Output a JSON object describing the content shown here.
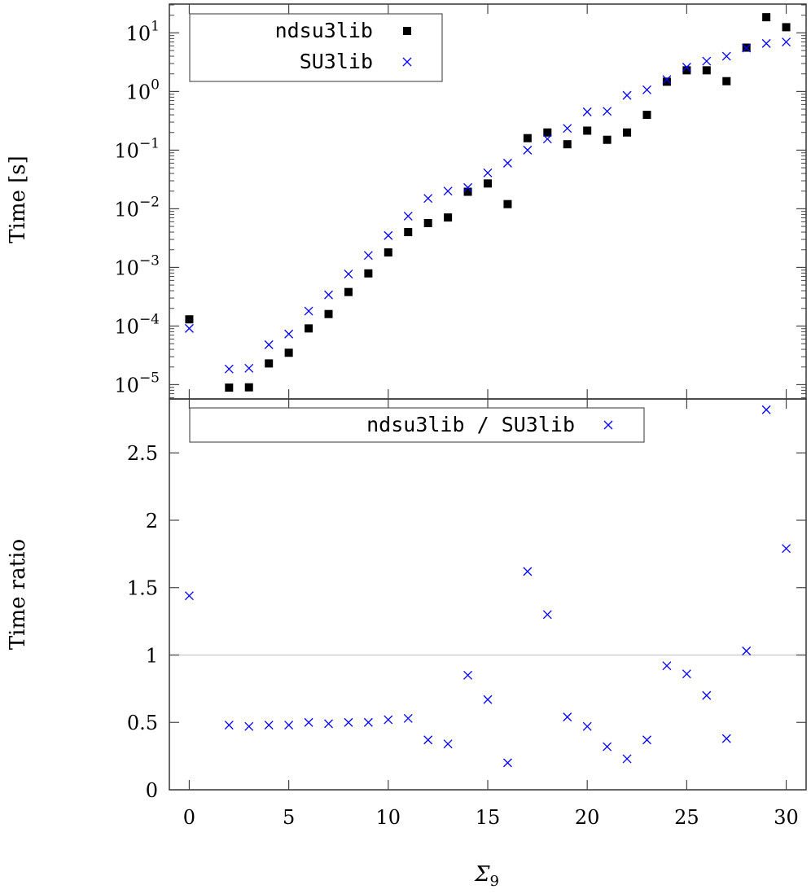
{
  "chart_data": [
    {
      "type": "scatter",
      "ylabel": "Time [s]",
      "yscale": "log",
      "ylim": [
        5.7e-06,
        31
      ],
      "xlim": [
        -1,
        31
      ],
      "yticks": [
        "10^1",
        "10^0",
        "10^-1",
        "10^-2",
        "10^-3",
        "10^-4",
        "10^-5"
      ],
      "legend": "top-left",
      "x": [
        0,
        2,
        3,
        4,
        5,
        6,
        7,
        8,
        9,
        10,
        11,
        12,
        13,
        14,
        15,
        16,
        17,
        18,
        19,
        20,
        21,
        22,
        23,
        24,
        25,
        26,
        27,
        28,
        29,
        30
      ],
      "series": [
        {
          "name": "ndsu3lib",
          "marker": "square",
          "color": "#000000",
          "values": [
            0.00013,
            8.9e-06,
            9e-06,
            2.3e-05,
            3.5e-05,
            9.1e-05,
            0.00016,
            0.00038,
            0.00079,
            0.0018,
            0.004,
            0.0057,
            0.0071,
            0.0195,
            0.027,
            0.012,
            0.16,
            0.2,
            0.126,
            0.215,
            0.15,
            0.2,
            0.4,
            1.47,
            2.3,
            2.3,
            1.5,
            5.6,
            18.5,
            12.5
          ]
        },
        {
          "name": "SU3lib",
          "marker": "cross",
          "color": "#0000ff",
          "values": [
            9.1e-05,
            1.85e-05,
            1.9e-05,
            4.8e-05,
            7.3e-05,
            0.00018,
            0.00034,
            0.00077,
            0.0016,
            0.0035,
            0.0075,
            0.015,
            0.02,
            0.023,
            0.041,
            0.06,
            0.1,
            0.155,
            0.235,
            0.45,
            0.46,
            0.86,
            1.07,
            1.6,
            2.6,
            3.3,
            4.0,
            5.5,
            6.6,
            7.0
          ]
        }
      ]
    },
    {
      "type": "scatter",
      "xlabel": "Σ9",
      "ylabel": "Time ratio",
      "xlim": [
        -1,
        31
      ],
      "ylim": [
        0,
        2.9
      ],
      "xticks": [
        "0",
        "5",
        "10",
        "15",
        "20",
        "25",
        "30"
      ],
      "yticks": [
        "0",
        "0.5",
        "1",
        "1.5",
        "2",
        "2.5"
      ],
      "reference_line": 1,
      "legend": "top",
      "x": [
        0,
        2,
        3,
        4,
        5,
        6,
        7,
        8,
        9,
        10,
        11,
        12,
        13,
        14,
        15,
        16,
        17,
        18,
        19,
        20,
        21,
        22,
        23,
        24,
        25,
        26,
        27,
        28,
        29,
        30
      ],
      "series": [
        {
          "name": "ndsu3lib / SU3lib",
          "marker": "cross",
          "color": "#0000ff",
          "values": [
            1.44,
            0.48,
            0.47,
            0.48,
            0.48,
            0.5,
            0.49,
            0.5,
            0.5,
            0.52,
            0.53,
            0.37,
            0.34,
            0.85,
            0.67,
            0.2,
            1.62,
            1.3,
            0.54,
            0.47,
            0.32,
            0.23,
            0.37,
            0.92,
            0.86,
            0.7,
            0.38,
            1.03,
            2.82,
            1.79
          ]
        }
      ]
    }
  ]
}
